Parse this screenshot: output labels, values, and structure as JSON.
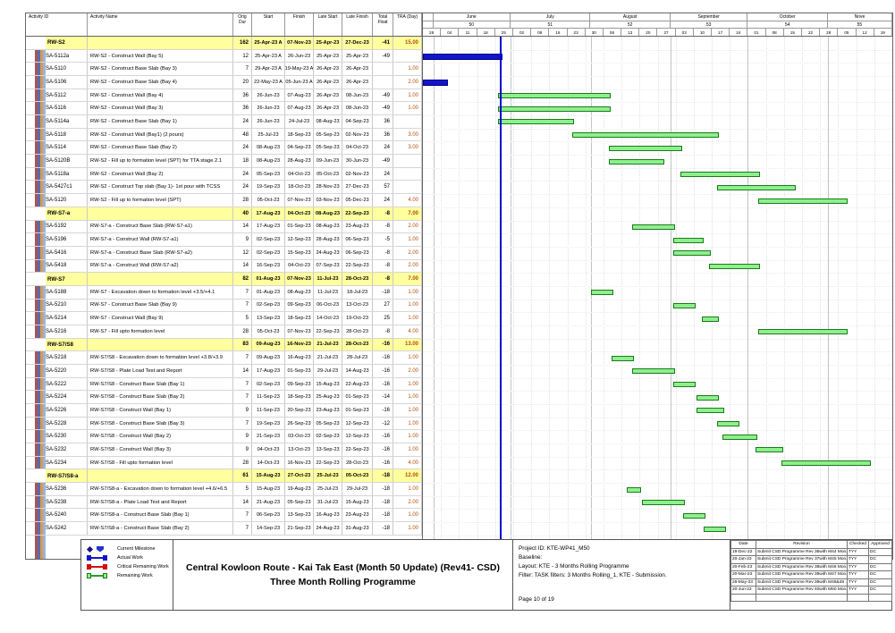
{
  "table": {
    "header": [
      "Activity ID",
      "Activity Name",
      "Orig Dur",
      "Start",
      "Finish",
      "Late Start",
      "Late Finish",
      "Total Float",
      "TRA (Day)"
    ],
    "rows": [
      {
        "id": "RW-S2",
        "name": "",
        "dur": "162",
        "start": "25-Apr-23 A",
        "finish": "07-Nov-23",
        "late_start": "25-Apr-23",
        "late_finish": "27-Dec-23",
        "float": "-41",
        "tra": "15.00",
        "type": "summary",
        "bar": "none"
      },
      {
        "id": "SA-5112a",
        "name": "RW-S2 - Construct Wall (Bay 5)",
        "dur": "12",
        "start": "25-Apr-23 A",
        "finish": "26-Jun-23",
        "late_start": "25-Apr-23",
        "late_finish": "25-Apr-23",
        "float": "-49",
        "tra": "",
        "type": "task",
        "bar": "actual"
      },
      {
        "id": "SA-5110",
        "name": "RW-S2 - Construct Base Slab (Bay 3)",
        "dur": "7",
        "start": "29-Apr-23 A",
        "finish": "19-May-23 A",
        "late_start": "26-Apr-23",
        "late_finish": "26-Apr-23",
        "float": "",
        "tra": "1.00",
        "type": "task",
        "bar": "none"
      },
      {
        "id": "SA-5106",
        "name": "RW-S2 - Construct Base Slab (Bay 4)",
        "dur": "20",
        "start": "22-May-23 A",
        "finish": "05-Jun-23 A",
        "late_start": "26-Apr-23",
        "late_finish": "26-Apr-23",
        "float": "",
        "tra": "2.00",
        "type": "task",
        "bar": "actual"
      },
      {
        "id": "SA-5112",
        "name": "RW-S2 - Construct Wall (Bay 4)",
        "dur": "36",
        "start": "26-Jun-23",
        "finish": "07-Aug-23",
        "late_start": "26-Apr-23",
        "late_finish": "08-Jun-23",
        "float": "-49",
        "tra": "1.00",
        "type": "task",
        "bar": "remaining"
      },
      {
        "id": "SA-5116",
        "name": "RW-S2 - Construct Wall (Bay 3)",
        "dur": "36",
        "start": "26-Jun-23",
        "finish": "07-Aug-23",
        "late_start": "26-Apr-23",
        "late_finish": "08-Jun-23",
        "float": "-49",
        "tra": "1.00",
        "type": "task",
        "bar": "remaining"
      },
      {
        "id": "SA-5114a",
        "name": "RW-S2 - Construct Base Slab (Bay 1)",
        "dur": "24",
        "start": "26-Jun-23",
        "finish": "24-Jul-23",
        "late_start": "08-Aug-23",
        "late_finish": "04-Sep-23",
        "float": "36",
        "tra": "",
        "type": "task",
        "bar": "remaining"
      },
      {
        "id": "SA-5118",
        "name": "RW-S2 - Construct Wall (Bay1) (2 pours)",
        "dur": "48",
        "start": "25-Jul-23",
        "finish": "18-Sep-23",
        "late_start": "05-Sep-23",
        "late_finish": "02-Nov-23",
        "float": "36",
        "tra": "3.00",
        "type": "task",
        "bar": "remaining"
      },
      {
        "id": "SA-5114",
        "name": "RW-S2 - Construct Base Slab (Bay 2)",
        "dur": "24",
        "start": "08-Aug-23",
        "finish": "04-Sep-23",
        "late_start": "05-Sep-23",
        "late_finish": "04-Oct-23",
        "float": "24",
        "tra": "3.00",
        "type": "task",
        "bar": "remaining"
      },
      {
        "id": "SA-5120B",
        "name": "RW-S2 - Fill up to formation level (SPT) for TTA stage 2.1",
        "dur": "18",
        "start": "08-Aug-23",
        "finish": "28-Aug-23",
        "late_start": "09-Jun-23",
        "late_finish": "30-Jun-23",
        "float": "-49",
        "tra": "",
        "type": "task",
        "bar": "remaining"
      },
      {
        "id": "SA-5118a",
        "name": "RW-S2 - Construct Wall (Bay 2)",
        "dur": "24",
        "start": "05-Sep-23",
        "finish": "04-Oct-23",
        "late_start": "05-Oct-23",
        "late_finish": "02-Nov-23",
        "float": "24",
        "tra": "",
        "type": "task",
        "bar": "remaining"
      },
      {
        "id": "SA-5427c1",
        "name": "RW-S2 - Construct Top slab  (Bay 1)- 1st pour with TCSS",
        "dur": "24",
        "start": "19-Sep-23",
        "finish": "18-Oct-23",
        "late_start": "28-Nov-23",
        "late_finish": "27-Dec-23",
        "float": "57",
        "tra": "",
        "type": "task",
        "bar": "remaining"
      },
      {
        "id": "SA-5120",
        "name": "RW-S2 - Fill up to formation level (SPT)",
        "dur": "28",
        "start": "05-Oct-23",
        "finish": "07-Nov-23",
        "late_start": "03-Nov-23",
        "late_finish": "05-Dec-23",
        "float": "24",
        "tra": "4.00",
        "type": "task",
        "bar": "remaining"
      },
      {
        "id": "RW-S7-a",
        "name": "",
        "dur": "40",
        "start": "17-Aug-23",
        "finish": "04-Oct-23",
        "late_start": "08-Aug-23",
        "late_finish": "22-Sep-23",
        "float": "-8",
        "tra": "7.00",
        "type": "summary",
        "bar": "none"
      },
      {
        "id": "SA-5192",
        "name": "RW-S7-a - Construct Base Slab (RW-S7-a1)",
        "dur": "14",
        "start": "17-Aug-23",
        "finish": "01-Sep-23",
        "late_start": "08-Aug-23",
        "late_finish": "23-Aug-23",
        "float": "-8",
        "tra": "2.00",
        "type": "task",
        "bar": "remaining"
      },
      {
        "id": "SA-5196",
        "name": "RW-S7-a - Construct Wall (RW-S7-a1)",
        "dur": "9",
        "start": "02-Sep-23",
        "finish": "12-Sep-23",
        "late_start": "28-Aug-23",
        "late_finish": "06-Sep-23",
        "float": "-5",
        "tra": "1.00",
        "type": "task",
        "bar": "remaining"
      },
      {
        "id": "SA-5416",
        "name": "RW-S7-a - Construct Base Slab (RW-S7-a2)",
        "dur": "12",
        "start": "02-Sep-23",
        "finish": "15-Sep-23",
        "late_start": "24-Aug-23",
        "late_finish": "06-Sep-23",
        "float": "-8",
        "tra": "2.00",
        "type": "task",
        "bar": "remaining"
      },
      {
        "id": "SA-5418",
        "name": "RW-S7-a - Construct Wall (RW-S7-a2)",
        "dur": "14",
        "start": "16-Sep-23",
        "finish": "04-Oct-23",
        "late_start": "07-Sep-23",
        "late_finish": "22-Sep-23",
        "float": "-8",
        "tra": "2.00",
        "type": "task",
        "bar": "remaining"
      },
      {
        "id": "RW-S7",
        "name": "",
        "dur": "82",
        "start": "01-Aug-23",
        "finish": "07-Nov-23",
        "late_start": "11-Jul-23",
        "late_finish": "28-Oct-23",
        "float": "-8",
        "tra": "7.00",
        "type": "summary",
        "bar": "none"
      },
      {
        "id": "SA-5188",
        "name": "RW-S7 - Excavation down to formation level +3.5/+4.1",
        "dur": "7",
        "start": "01-Aug-23",
        "finish": "08-Aug-23",
        "late_start": "11-Jul-23",
        "late_finish": "18-Jul-23",
        "float": "-18",
        "tra": "1.00",
        "type": "task",
        "bar": "remaining"
      },
      {
        "id": "SA-5210",
        "name": "RW-S7 - Construct Base Slab (Bay 9)",
        "dur": "7",
        "start": "02-Sep-23",
        "finish": "09-Sep-23",
        "late_start": "06-Oct-23",
        "late_finish": "13-Oct-23",
        "float": "27",
        "tra": "1.00",
        "type": "task",
        "bar": "remaining"
      },
      {
        "id": "SA-5214",
        "name": "RW-S7 - Construct Wall (Bay 9)",
        "dur": "5",
        "start": "13-Sep-23",
        "finish": "18-Sep-23",
        "late_start": "14-Oct-23",
        "late_finish": "19-Oct-23",
        "float": "25",
        "tra": "1.00",
        "type": "task",
        "bar": "remaining"
      },
      {
        "id": "SA-5216",
        "name": "RW-S7 - Fill upto formation level",
        "dur": "28",
        "start": "05-Oct-23",
        "finish": "07-Nov-23",
        "late_start": "22-Sep-23",
        "late_finish": "28-Oct-23",
        "float": "-8",
        "tra": "4.00",
        "type": "task",
        "bar": "remaining"
      },
      {
        "id": "RW-S7/S8",
        "name": "",
        "dur": "83",
        "start": "09-Aug-23",
        "finish": "16-Nov-23",
        "late_start": "21-Jul-23",
        "late_finish": "28-Oct-23",
        "float": "-16",
        "tra": "13.00",
        "type": "summary",
        "bar": "none"
      },
      {
        "id": "SA-5218",
        "name": "RW-S7/S8 - Excavation down to formation level +3.8/+3.9",
        "dur": "7",
        "start": "09-Aug-23",
        "finish": "16-Aug-23",
        "late_start": "21-Jul-23",
        "late_finish": "28-Jul-23",
        "float": "-16",
        "tra": "1.00",
        "type": "task",
        "bar": "remaining"
      },
      {
        "id": "SA-5220",
        "name": "RW-S7/S8 - Plate Load Test and Report",
        "dur": "14",
        "start": "17-Aug-23",
        "finish": "01-Sep-23",
        "late_start": "29-Jul-23",
        "late_finish": "14-Aug-23",
        "float": "-16",
        "tra": "2.00",
        "type": "task",
        "bar": "remaining"
      },
      {
        "id": "SA-5222",
        "name": "RW-S7/S8 - Construct Base Slab (Bay 1)",
        "dur": "7",
        "start": "02-Sep-23",
        "finish": "09-Sep-23",
        "late_start": "15-Aug-23",
        "late_finish": "22-Aug-23",
        "float": "-16",
        "tra": "1.00",
        "type": "task",
        "bar": "remaining"
      },
      {
        "id": "SA-5224",
        "name": "RW-S7/S8 - Construct Base Slab (Bay 2)",
        "dur": "7",
        "start": "11-Sep-23",
        "finish": "18-Sep-23",
        "late_start": "25-Aug-23",
        "late_finish": "01-Sep-23",
        "float": "-14",
        "tra": "1.00",
        "type": "task",
        "bar": "remaining"
      },
      {
        "id": "SA-5226",
        "name": "RW-S7/S8 - Construct Wall (Bay 1)",
        "dur": "9",
        "start": "11-Sep-23",
        "finish": "20-Sep-23",
        "late_start": "23-Aug-23",
        "late_finish": "01-Sep-23",
        "float": "-16",
        "tra": "1.00",
        "type": "task",
        "bar": "remaining"
      },
      {
        "id": "SA-5228",
        "name": "RW-S7/S8 - Construct Base Slab (Bay 3)",
        "dur": "7",
        "start": "19-Sep-23",
        "finish": "26-Sep-23",
        "late_start": "05-Sep-23",
        "late_finish": "12-Sep-23",
        "float": "-12",
        "tra": "1.00",
        "type": "task",
        "bar": "remaining"
      },
      {
        "id": "SA-5230",
        "name": "RW-S7/S8 - Construct Wall (Bay 2)",
        "dur": "9",
        "start": "21-Sep-23",
        "finish": "03-Oct-23",
        "late_start": "02-Sep-23",
        "late_finish": "12-Sep-23",
        "float": "-16",
        "tra": "1.00",
        "type": "task",
        "bar": "remaining"
      },
      {
        "id": "SA-5232",
        "name": "RW-S7/S8 - Construct Wall (Bay 3)",
        "dur": "9",
        "start": "04-Oct-23",
        "finish": "13-Oct-23",
        "late_start": "13-Sep-23",
        "late_finish": "22-Sep-23",
        "float": "-16",
        "tra": "1.00",
        "type": "task",
        "bar": "remaining"
      },
      {
        "id": "SA-5234",
        "name": "RW-S7/S8 - Fill upto formation level",
        "dur": "28",
        "start": "14-Oct-23",
        "finish": "16-Nov-23",
        "late_start": "22-Sep-23",
        "late_finish": "28-Oct-23",
        "float": "-16",
        "tra": "4.00",
        "type": "task",
        "bar": "remaining"
      },
      {
        "id": "RW-S7/S8-a",
        "name": "",
        "dur": "61",
        "start": "15-Aug-23",
        "finish": "27-Oct-23",
        "late_start": "25-Jul-23",
        "late_finish": "05-Oct-23",
        "float": "-18",
        "tra": "12.00",
        "type": "summary",
        "bar": "none"
      },
      {
        "id": "SA-5236",
        "name": "RW-S7/S8-a - Excavation down to formation level +4.6/+6.5",
        "dur": "5",
        "start": "15-Aug-23",
        "finish": "19-Aug-23",
        "late_start": "25-Jul-23",
        "late_finish": "29-Jul-23",
        "float": "-18",
        "tra": "1.00",
        "type": "task",
        "bar": "remaining"
      },
      {
        "id": "SA-5238",
        "name": "RW-S7/S8-a - Plate Load Test and Report",
        "dur": "14",
        "start": "21-Aug-23",
        "finish": "05-Sep-23",
        "late_start": "31-Jul-23",
        "late_finish": "15-Aug-23",
        "float": "-18",
        "tra": "2.00",
        "type": "task",
        "bar": "remaining"
      },
      {
        "id": "SA-5240",
        "name": "RW-S7/S8-a - Construct Base Slab (Bay 1)",
        "dur": "7",
        "start": "06-Sep-23",
        "finish": "13-Sep-23",
        "late_start": "16-Aug-23",
        "late_finish": "23-Aug-23",
        "float": "-18",
        "tra": "1.00",
        "type": "task",
        "bar": "remaining"
      },
      {
        "id": "SA-5242",
        "name": "RW-S7/S8-a - Construct Base Slab (Bay 2)",
        "dur": "7",
        "start": "14-Sep-23",
        "finish": "21-Sep-23",
        "late_start": "24-Aug-23",
        "late_finish": "31-Aug-23",
        "float": "-18",
        "tra": "1.00",
        "type": "task",
        "bar": "remaining"
      }
    ]
  },
  "timeline": {
    "chart_start": "28-May-23",
    "total_days": 182,
    "data_date": "26-Jun-23",
    "months": [
      {
        "label": "",
        "num": "",
        "days": 4
      },
      {
        "label": "June",
        "num": "50",
        "days": 30
      },
      {
        "label": "July",
        "num": "51",
        "days": 31
      },
      {
        "label": "August",
        "num": "52",
        "days": 31
      },
      {
        "label": "September",
        "num": "53",
        "days": 30
      },
      {
        "label": "October",
        "num": "54",
        "days": 31
      },
      {
        "label": "Nove",
        "num": "55",
        "days": 25
      }
    ],
    "weeks": [
      "28",
      "04",
      "11",
      "18",
      "25",
      "02",
      "09",
      "16",
      "23",
      "30",
      "06",
      "13",
      "20",
      "27",
      "03",
      "10",
      "17",
      "24",
      "01",
      "08",
      "15",
      "22",
      "29",
      "05",
      "12",
      "19"
    ]
  },
  "legend": {
    "items": [
      {
        "label": "Current Milestone",
        "icon": "milestone"
      },
      {
        "label": "Actual Work",
        "icon": "bar-blue"
      },
      {
        "label": "Critical Remaining Work",
        "icon": "bar-red"
      },
      {
        "label": "Remaining Work",
        "icon": "bar-green"
      }
    ]
  },
  "title_block": {
    "line1": "Central Kowloon Route - Kai Tak East (Month 50 Update) (Rev41- CSD)",
    "line2": "Three Month Rolling Programme"
  },
  "project_info": {
    "line1": "Project ID: KTE-WP41_M50",
    "line2": "Baseline:",
    "line3": "Layout: KTE - 3 Months Rolling Programme",
    "line4": "Filter: TASK filters: 3 Months Rolling_1, KTE - Submission.",
    "page": "Page 10 of 19"
  },
  "revision_table": {
    "header": [
      "Date",
      "Revision",
      "Checked",
      "Approved"
    ],
    "rows": [
      [
        "19-Dec-22",
        "Submit CSD Programme Rev 36with M44 Mon..",
        "TYY",
        "DC"
      ],
      [
        "20-Jan-23",
        "Submit CSD Programme Rev 37with M45 Mon..",
        "TYY",
        "DC"
      ],
      [
        "20-Feb-23",
        "Submit CSD Programme Rev 38with M46 Mon..",
        "TYY",
        "DC"
      ],
      [
        "20-Mar-23",
        "Submit CSD Programme Rev 39with M47 Mon..",
        "TYY",
        "DC"
      ],
      [
        "26-May-23",
        "Submit CSD Programme Rev 39with M48&49 ..",
        "TYY",
        "DC"
      ],
      [
        "20-Jun-23",
        "Submit CSD Programme Rev 40with M50 Mon..",
        "TYY",
        "DC"
      ]
    ]
  },
  "colors": {
    "actual_bar": "#1515c8",
    "remaining_fill": "#8df08d",
    "remaining_border": "#1c7a1c",
    "critical_bar": "#d01010",
    "data_date_line": "#0000cc",
    "summary_row_bg": "#ffff9e",
    "tra_text": "#b4500a"
  }
}
